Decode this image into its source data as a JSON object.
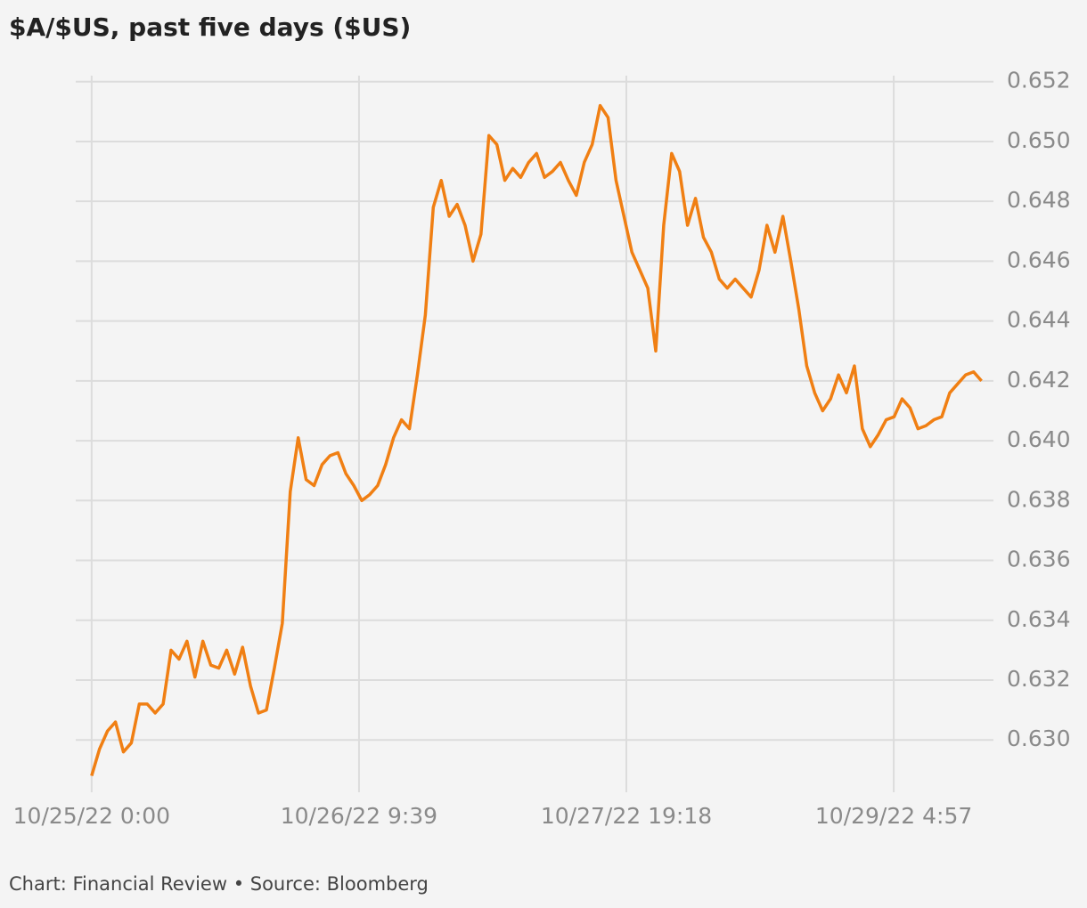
{
  "chart_data": {
    "type": "line",
    "title": "$A/$US, past five days ($US)",
    "source": "Chart: Financial Review • Source: Bloomberg",
    "color": "#f07f13",
    "grid": true,
    "x": [
      "2022-10-25T00:00",
      "2022-10-25T01:00",
      "2022-10-25T02:00",
      "2022-10-25T03:00",
      "2022-10-25T04:00",
      "2022-10-25T05:00",
      "2022-10-25T06:00",
      "2022-10-25T07:00",
      "2022-10-25T08:00",
      "2022-10-25T09:00",
      "2022-10-25T10:00",
      "2022-10-25T11:00",
      "2022-10-25T12:00",
      "2022-10-25T13:00",
      "2022-10-25T14:00",
      "2022-10-25T15:00",
      "2022-10-25T16:00",
      "2022-10-25T17:00",
      "2022-10-25T18:00",
      "2022-10-25T19:00",
      "2022-10-25T20:00",
      "2022-10-25T21:00",
      "2022-10-25T22:00",
      "2022-10-25T23:00",
      "2022-10-26T00:00",
      "2022-10-26T01:00",
      "2022-10-26T02:00",
      "2022-10-26T03:00",
      "2022-10-26T04:00",
      "2022-10-26T05:00",
      "2022-10-26T06:00",
      "2022-10-26T07:00",
      "2022-10-26T08:00",
      "2022-10-26T09:00",
      "2022-10-26T10:00",
      "2022-10-26T11:00",
      "2022-10-26T12:00",
      "2022-10-26T13:00",
      "2022-10-26T14:00",
      "2022-10-26T15:00",
      "2022-10-26T16:00",
      "2022-10-26T17:00",
      "2022-10-26T18:00",
      "2022-10-26T19:00",
      "2022-10-26T20:00",
      "2022-10-26T21:00",
      "2022-10-26T22:00",
      "2022-10-26T23:00",
      "2022-10-27T00:00",
      "2022-10-27T01:00",
      "2022-10-27T02:00",
      "2022-10-27T03:00",
      "2022-10-27T04:00",
      "2022-10-27T05:00",
      "2022-10-27T06:00",
      "2022-10-27T07:00",
      "2022-10-27T08:00",
      "2022-10-27T09:00",
      "2022-10-27T10:00",
      "2022-10-27T11:00",
      "2022-10-27T12:00",
      "2022-10-27T13:00",
      "2022-10-27T14:00",
      "2022-10-27T15:00",
      "2022-10-27T16:00",
      "2022-10-27T17:00",
      "2022-10-27T18:00",
      "2022-10-27T19:00",
      "2022-10-27T20:00",
      "2022-10-27T21:00",
      "2022-10-27T22:00",
      "2022-10-27T23:00",
      "2022-10-28T00:00",
      "2022-10-28T01:00",
      "2022-10-28T02:00",
      "2022-10-28T03:00",
      "2022-10-28T04:00",
      "2022-10-28T05:00",
      "2022-10-28T06:00",
      "2022-10-28T07:00",
      "2022-10-28T08:00",
      "2022-10-28T09:00",
      "2022-10-28T10:00",
      "2022-10-28T11:00",
      "2022-10-28T12:00",
      "2022-10-28T13:00",
      "2022-10-28T14:00",
      "2022-10-28T15:00",
      "2022-10-28T16:00",
      "2022-10-28T17:00",
      "2022-10-28T18:00",
      "2022-10-28T19:00",
      "2022-10-28T20:00",
      "2022-10-28T21:00",
      "2022-10-28T22:00",
      "2022-10-28T23:00",
      "2022-10-29T00:00",
      "2022-10-29T01:00",
      "2022-10-29T02:00",
      "2022-10-29T03:00",
      "2022-10-29T04:00",
      "2022-10-29T05:00",
      "2022-10-29T06:00",
      "2022-10-29T07:00",
      "2022-10-29T08:00",
      "2022-10-29T09:00",
      "2022-10-29T10:00",
      "2022-10-29T11:00",
      "2022-10-29T12:00",
      "2022-10-29T13:00",
      "2022-10-29T14:00",
      "2022-10-29T15:00",
      "2022-10-29T16:00"
    ],
    "values": [
      0.6288,
      0.6297,
      0.6303,
      0.6306,
      0.6296,
      0.6299,
      0.6312,
      0.6312,
      0.6309,
      0.6312,
      0.633,
      0.6327,
      0.6333,
      0.6321,
      0.6333,
      0.6325,
      0.6324,
      0.633,
      0.6322,
      0.6331,
      0.6318,
      0.6309,
      0.631,
      0.6324,
      0.6339,
      0.6383,
      0.6401,
      0.6387,
      0.6385,
      0.6392,
      0.6395,
      0.6396,
      0.6389,
      0.6385,
      0.638,
      0.6382,
      0.6385,
      0.6392,
      0.6401,
      0.6407,
      0.6404,
      0.6422,
      0.6442,
      0.6478,
      0.6487,
      0.6475,
      0.6479,
      0.6472,
      0.646,
      0.6469,
      0.6502,
      0.6499,
      0.6487,
      0.6491,
      0.6488,
      0.6493,
      0.6496,
      0.6488,
      0.649,
      0.6493,
      0.6487,
      0.6482,
      0.6493,
      0.6499,
      0.6512,
      0.6508,
      0.6487,
      0.6475,
      0.6463,
      0.6457,
      0.6451,
      0.643,
      0.6472,
      0.6496,
      0.649,
      0.6472,
      0.6481,
      0.6468,
      0.6463,
      0.6454,
      0.6451,
      0.6454,
      0.6451,
      0.6448,
      0.6457,
      0.6472,
      0.6463,
      0.6475,
      0.646,
      0.6444,
      0.6425,
      0.6416,
      0.641,
      0.6414,
      0.6422,
      0.6416,
      0.6425,
      0.6404,
      0.6398,
      0.6402,
      0.6407,
      0.6408,
      0.6414,
      0.6411,
      0.6404,
      0.6405,
      0.6407,
      0.6408,
      0.6416,
      0.6419,
      0.6422,
      0.6423,
      0.642
    ],
    "xlim": [
      "2022-10-24T22:00",
      "2022-10-29T17:30"
    ],
    "xticks": [
      {
        "value": "2022-10-25T00:00",
        "label": "10/25/22 0:00"
      },
      {
        "value": "2022-10-26T09:39",
        "label": "10/26/22 9:39"
      },
      {
        "value": "2022-10-27T19:18",
        "label": "10/27/22 19:18"
      },
      {
        "value": "2022-10-29T04:57",
        "label": "10/29/22 4:57"
      }
    ],
    "ylim": [
      0.6284,
      0.6522
    ],
    "yticks": [
      {
        "value": 0.63,
        "label": "0.630"
      },
      {
        "value": 0.632,
        "label": "0.632"
      },
      {
        "value": 0.634,
        "label": "0.634"
      },
      {
        "value": 0.636,
        "label": "0.636"
      },
      {
        "value": 0.638,
        "label": "0.638"
      },
      {
        "value": 0.64,
        "label": "0.640"
      },
      {
        "value": 0.642,
        "label": "0.642"
      },
      {
        "value": 0.644,
        "label": "0.644"
      },
      {
        "value": 0.646,
        "label": "0.646"
      },
      {
        "value": 0.648,
        "label": "0.648"
      },
      {
        "value": 0.65,
        "label": "0.650"
      },
      {
        "value": 0.652,
        "label": "0.652"
      }
    ]
  }
}
